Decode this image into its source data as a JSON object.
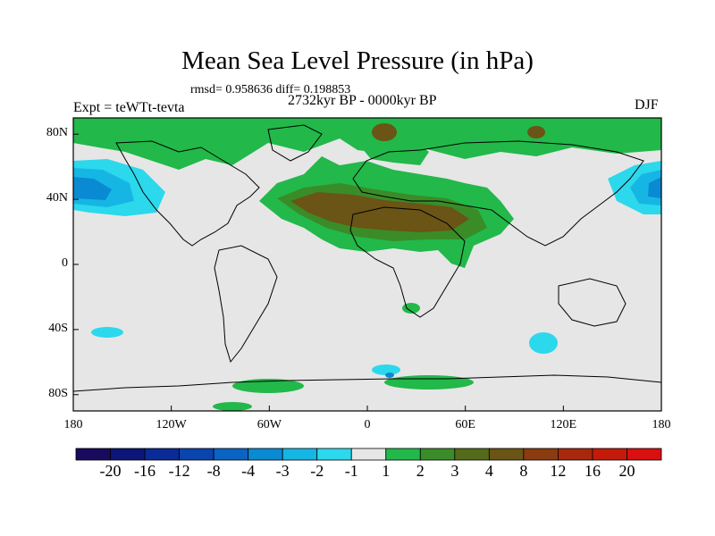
{
  "header": {
    "title": "Mean Sea Level Pressure (in hPa)",
    "stats": "rmsd= 0.958636 diff= 0.198853",
    "period": "2732kyr BP - 0000kyr BP",
    "experiment": "Expt = teWTt-tevta",
    "season": "DJF"
  },
  "map": {
    "lat_labels": [
      "80N",
      "40N",
      "0",
      "40S",
      "80S"
    ],
    "lon_labels": [
      "180",
      "120W",
      "60W",
      "0",
      "60E",
      "120E",
      "180"
    ],
    "lat_values": [
      80,
      40,
      0,
      -40,
      -80
    ],
    "lon_values": [
      -180,
      -120,
      -60,
      0,
      60,
      120,
      180
    ]
  },
  "colorbar": {
    "labels": [
      "-20",
      "-16",
      "-12",
      "-8",
      "-4",
      "-3",
      "-2",
      "-1",
      "1",
      "2",
      "3",
      "4",
      "8",
      "12",
      "16",
      "20"
    ],
    "colors": [
      "#1a0a5e",
      "#0b1678",
      "#0a2a96",
      "#0a44ad",
      "#0b63c4",
      "#0a8ad2",
      "#16b6e4",
      "#2cd8ec",
      "#e6e6e6",
      "#22b84a",
      "#3a8c28",
      "#556b1c",
      "#6a5416",
      "#8a3c10",
      "#a8280c",
      "#c41a0a",
      "#d81010"
    ]
  },
  "colors": {
    "background": "#e6e6e6",
    "green": "#22b84a",
    "brown": "#6a5416",
    "olive": "#556b1c",
    "cyan": "#2cd8ec",
    "blue": "#0a8ad2"
  }
}
